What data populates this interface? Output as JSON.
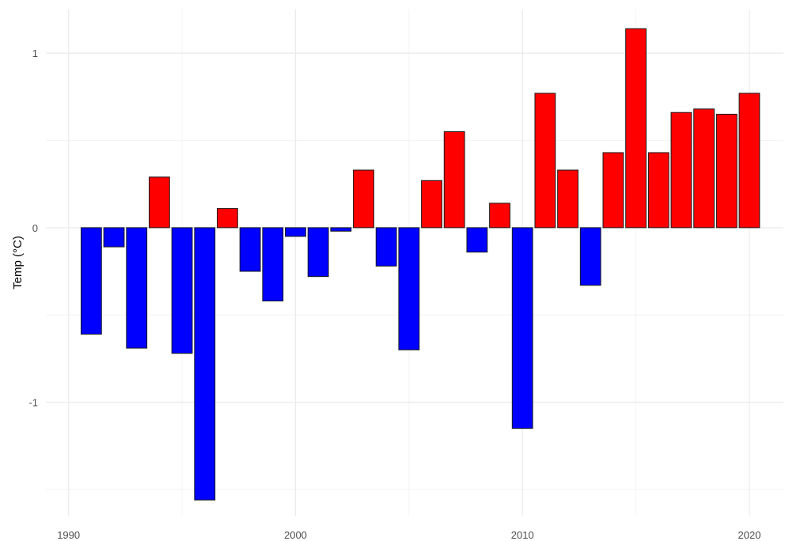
{
  "chart_data": {
    "type": "bar",
    "title": "",
    "xlabel": "",
    "ylabel": "Temp (°C)",
    "x": [
      1991,
      1992,
      1993,
      1994,
      1995,
      1996,
      1997,
      1998,
      1999,
      2000,
      2001,
      2002,
      2003,
      2004,
      2005,
      2006,
      2007,
      2008,
      2009,
      2010,
      2011,
      2012,
      2013,
      2014,
      2015,
      2016,
      2017,
      2018,
      2019,
      2020
    ],
    "values": [
      -0.61,
      -0.11,
      -0.69,
      0.29,
      -0.72,
      -1.56,
      0.11,
      -0.25,
      -0.42,
      -0.05,
      -0.28,
      -0.02,
      0.33,
      -0.22,
      -0.7,
      0.27,
      0.55,
      -0.14,
      0.14,
      -1.15,
      0.77,
      0.33,
      -0.33,
      0.43,
      1.14,
      0.43,
      0.66,
      0.68,
      0.65,
      0.77
    ],
    "xlim": [
      1989,
      2021.5
    ],
    "ylim": [
      -1.65,
      1.25
    ],
    "x_ticks": [
      1990,
      2000,
      2010,
      2020
    ],
    "x_tick_labels": [
      "1990",
      "2000",
      "2010",
      "2020"
    ],
    "y_ticks": [
      -1,
      0,
      1
    ],
    "y_tick_labels": [
      "-1",
      "0",
      "1"
    ],
    "grid": true,
    "legend": "none",
    "colors": {
      "positive": "#ff0000",
      "negative": "#0000ff",
      "outline": "#1a1a1a"
    }
  }
}
